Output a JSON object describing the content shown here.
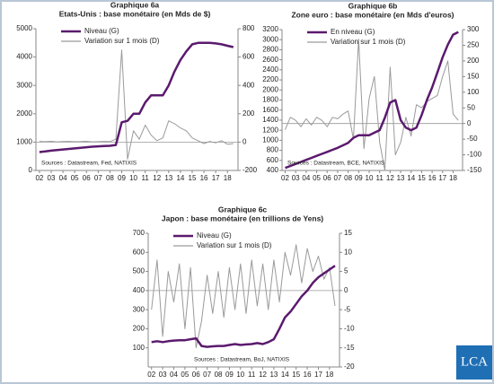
{
  "chart_data": [
    {
      "type": "line",
      "title": "Graphique 6a",
      "subtitle": "Etats-Unis : base monétaire (en Mds de $)",
      "annotation": "Sources : Datastream, Fed, NATIXIS",
      "x": [
        2,
        2.5,
        3,
        3.5,
        4,
        4.5,
        5,
        5.5,
        6,
        6.5,
        7,
        7.5,
        8,
        8.5,
        9,
        9.5,
        10,
        10.5,
        11,
        11.5,
        12,
        12.5,
        13,
        13.5,
        14,
        14.5,
        15,
        15.5,
        16,
        16.5,
        17,
        17.5,
        18,
        18.5
      ],
      "xlim": [
        1.7,
        18.9
      ],
      "xticks": [
        {
          "value": 2,
          "label": "02"
        },
        {
          "value": 3,
          "label": "03"
        },
        {
          "value": 4,
          "label": "04"
        },
        {
          "value": 5,
          "label": "05"
        },
        {
          "value": 6,
          "label": "06"
        },
        {
          "value": 7,
          "label": "07"
        },
        {
          "value": 8,
          "label": "08"
        },
        {
          "value": 9,
          "label": "09"
        },
        {
          "value": 10,
          "label": "10"
        },
        {
          "value": 11,
          "label": "11"
        },
        {
          "value": 12,
          "label": "12"
        },
        {
          "value": 13,
          "label": "13"
        },
        {
          "value": 14,
          "label": "14"
        },
        {
          "value": 15,
          "label": "15"
        },
        {
          "value": 16,
          "label": "16"
        },
        {
          "value": 17,
          "label": "17"
        },
        {
          "value": 18,
          "label": "18"
        }
      ],
      "ylim": [
        0,
        5000
      ],
      "yticks": [
        0,
        1000,
        2000,
        3000,
        4000,
        5000
      ],
      "y2lim": [
        -200,
        800
      ],
      "y2ticks": [
        -200,
        0,
        200,
        400,
        600,
        800
      ],
      "legend": "upper left",
      "series": [
        {
          "name": "Niveau (G)",
          "color": "#5b1a6e",
          "values": [
            650,
            670,
            700,
            720,
            740,
            760,
            780,
            800,
            820,
            840,
            850,
            860,
            870,
            900,
            1700,
            1750,
            2000,
            2000,
            2400,
            2650,
            2650,
            2650,
            3000,
            3500,
            3900,
            4200,
            4450,
            4500,
            4500,
            4500,
            4480,
            4450,
            4400,
            4350
          ]
        },
        {
          "name": "Variation sur 1 mois (D)",
          "color": "#9a9a9a",
          "axis": "y2",
          "values": [
            5,
            3,
            6,
            2,
            4,
            5,
            3,
            4,
            6,
            2,
            3,
            5,
            4,
            20,
            650,
            -120,
            80,
            20,
            120,
            50,
            10,
            30,
            150,
            130,
            100,
            80,
            30,
            10,
            -10,
            5,
            -5,
            10,
            -15,
            -10
          ]
        }
      ]
    },
    {
      "type": "line",
      "title": "Graphique 6b",
      "subtitle": "Zone euro : base monétaire (en Mds d'euros)",
      "annotation": "Sources : Datastream, BCE, NATIXIS",
      "x": [
        2,
        2.5,
        3,
        3.5,
        4,
        4.5,
        5,
        5.5,
        6,
        6.5,
        7,
        7.5,
        8,
        8.5,
        9,
        9.5,
        10,
        10.5,
        11,
        11.5,
        12,
        12.5,
        13,
        13.5,
        14,
        14.5,
        15,
        15.5,
        16,
        16.5,
        17,
        17.5,
        18,
        18.5
      ],
      "xlim": [
        1.7,
        18.9
      ],
      "xticks": [
        {
          "value": 2,
          "label": "02"
        },
        {
          "value": 3,
          "label": "03"
        },
        {
          "value": 4,
          "label": "04"
        },
        {
          "value": 5,
          "label": "05"
        },
        {
          "value": 6,
          "label": "06"
        },
        {
          "value": 7,
          "label": "07"
        },
        {
          "value": 8,
          "label": "08"
        },
        {
          "value": 9,
          "label": "09"
        },
        {
          "value": 10,
          "label": "10"
        },
        {
          "value": 11,
          "label": "11"
        },
        {
          "value": 12,
          "label": "12"
        },
        {
          "value": 13,
          "label": "13"
        },
        {
          "value": 14,
          "label": "14"
        },
        {
          "value": 15,
          "label": "15"
        },
        {
          "value": 16,
          "label": "16"
        },
        {
          "value": 17,
          "label": "17"
        },
        {
          "value": 18,
          "label": "18"
        }
      ],
      "ylim": [
        400,
        3200
      ],
      "yticks": [
        400,
        600,
        800,
        1000,
        1200,
        1400,
        1600,
        1800,
        2000,
        2200,
        2400,
        2600,
        2800,
        3000,
        3200
      ],
      "y2lim": [
        -150,
        300
      ],
      "y2ticks": [
        -150,
        -100,
        -50,
        0,
        50,
        100,
        150,
        200,
        250,
        300
      ],
      "legend": "upper left",
      "series": [
        {
          "name": "En niveau (G)",
          "color": "#5b1a6e",
          "values": [
            450,
            490,
            530,
            570,
            610,
            650,
            690,
            730,
            770,
            810,
            850,
            900,
            950,
            1050,
            1100,
            1100,
            1100,
            1150,
            1200,
            1450,
            1750,
            1800,
            1400,
            1250,
            1200,
            1250,
            1500,
            1800,
            2050,
            2350,
            2650,
            2900,
            3100,
            3150
          ]
        },
        {
          "name": "Variation sur 1 mois (D)",
          "color": "#9a9a9a",
          "axis": "y2",
          "values": [
            -20,
            20,
            10,
            -10,
            15,
            -5,
            20,
            10,
            -10,
            20,
            15,
            30,
            40,
            -50,
            270,
            -80,
            80,
            150,
            -60,
            -150,
            180,
            -100,
            -60,
            20,
            -40,
            60,
            50,
            70,
            80,
            90,
            150,
            200,
            30,
            10
          ]
        }
      ]
    },
    {
      "type": "line",
      "title": "Graphique 6c",
      "subtitle": "Japon : base monétaire (en trillions de Yens)",
      "annotation": "Sources : Datastream, BoJ, NATIXIS",
      "x": [
        2,
        2.5,
        3,
        3.5,
        4,
        4.5,
        5,
        5.5,
        6,
        6.5,
        7,
        7.5,
        8,
        8.5,
        9,
        9.5,
        10,
        10.5,
        11,
        11.5,
        12,
        12.5,
        13,
        13.5,
        14,
        14.5,
        15,
        15.5,
        16,
        16.5,
        17,
        17.5,
        18,
        18.5
      ],
      "xlim": [
        1.7,
        18.9
      ],
      "xticks": [
        {
          "value": 2,
          "label": "02"
        },
        {
          "value": 3,
          "label": "03"
        },
        {
          "value": 4,
          "label": "04"
        },
        {
          "value": 5,
          "label": "05"
        },
        {
          "value": 6,
          "label": "06"
        },
        {
          "value": 7,
          "label": "07"
        },
        {
          "value": 8,
          "label": "08"
        },
        {
          "value": 9,
          "label": "09"
        },
        {
          "value": 10,
          "label": "10"
        },
        {
          "value": 11,
          "label": "11"
        },
        {
          "value": 12,
          "label": "12"
        },
        {
          "value": 13,
          "label": "13"
        },
        {
          "value": 14,
          "label": "14"
        },
        {
          "value": 15,
          "label": "15"
        },
        {
          "value": 16,
          "label": "16"
        },
        {
          "value": 17,
          "label": "17"
        },
        {
          "value": 18,
          "label": "18"
        }
      ],
      "ylim": [
        0,
        700
      ],
      "yticks": [
        100,
        200,
        300,
        400,
        500,
        600,
        700
      ],
      "y2lim": [
        -20,
        15
      ],
      "y2ticks": [
        -20,
        -15,
        -10,
        -5,
        0,
        5,
        10,
        15
      ],
      "legend": "upper left",
      "series": [
        {
          "name": "Niveau (G)",
          "color": "#5b1a6e",
          "values": [
            130,
            135,
            130,
            135,
            138,
            140,
            140,
            145,
            150,
            110,
            105,
            108,
            110,
            110,
            115,
            120,
            115,
            118,
            120,
            125,
            120,
            130,
            145,
            200,
            260,
            290,
            330,
            370,
            400,
            440,
            470,
            490,
            510,
            530
          ]
        },
        {
          "name": "Variation sur 1 mois (D)",
          "color": "#9a9a9a",
          "axis": "y2",
          "values": [
            -5,
            8,
            -12,
            5,
            -3,
            7,
            -10,
            6,
            -15,
            -8,
            4,
            -6,
            5,
            -7,
            6,
            -5,
            7,
            -6,
            8,
            -4,
            7,
            -5,
            8,
            -3,
            10,
            4,
            12,
            2,
            11,
            5,
            9,
            3,
            6,
            -4
          ]
        }
      ]
    }
  ],
  "logo": "LCA"
}
